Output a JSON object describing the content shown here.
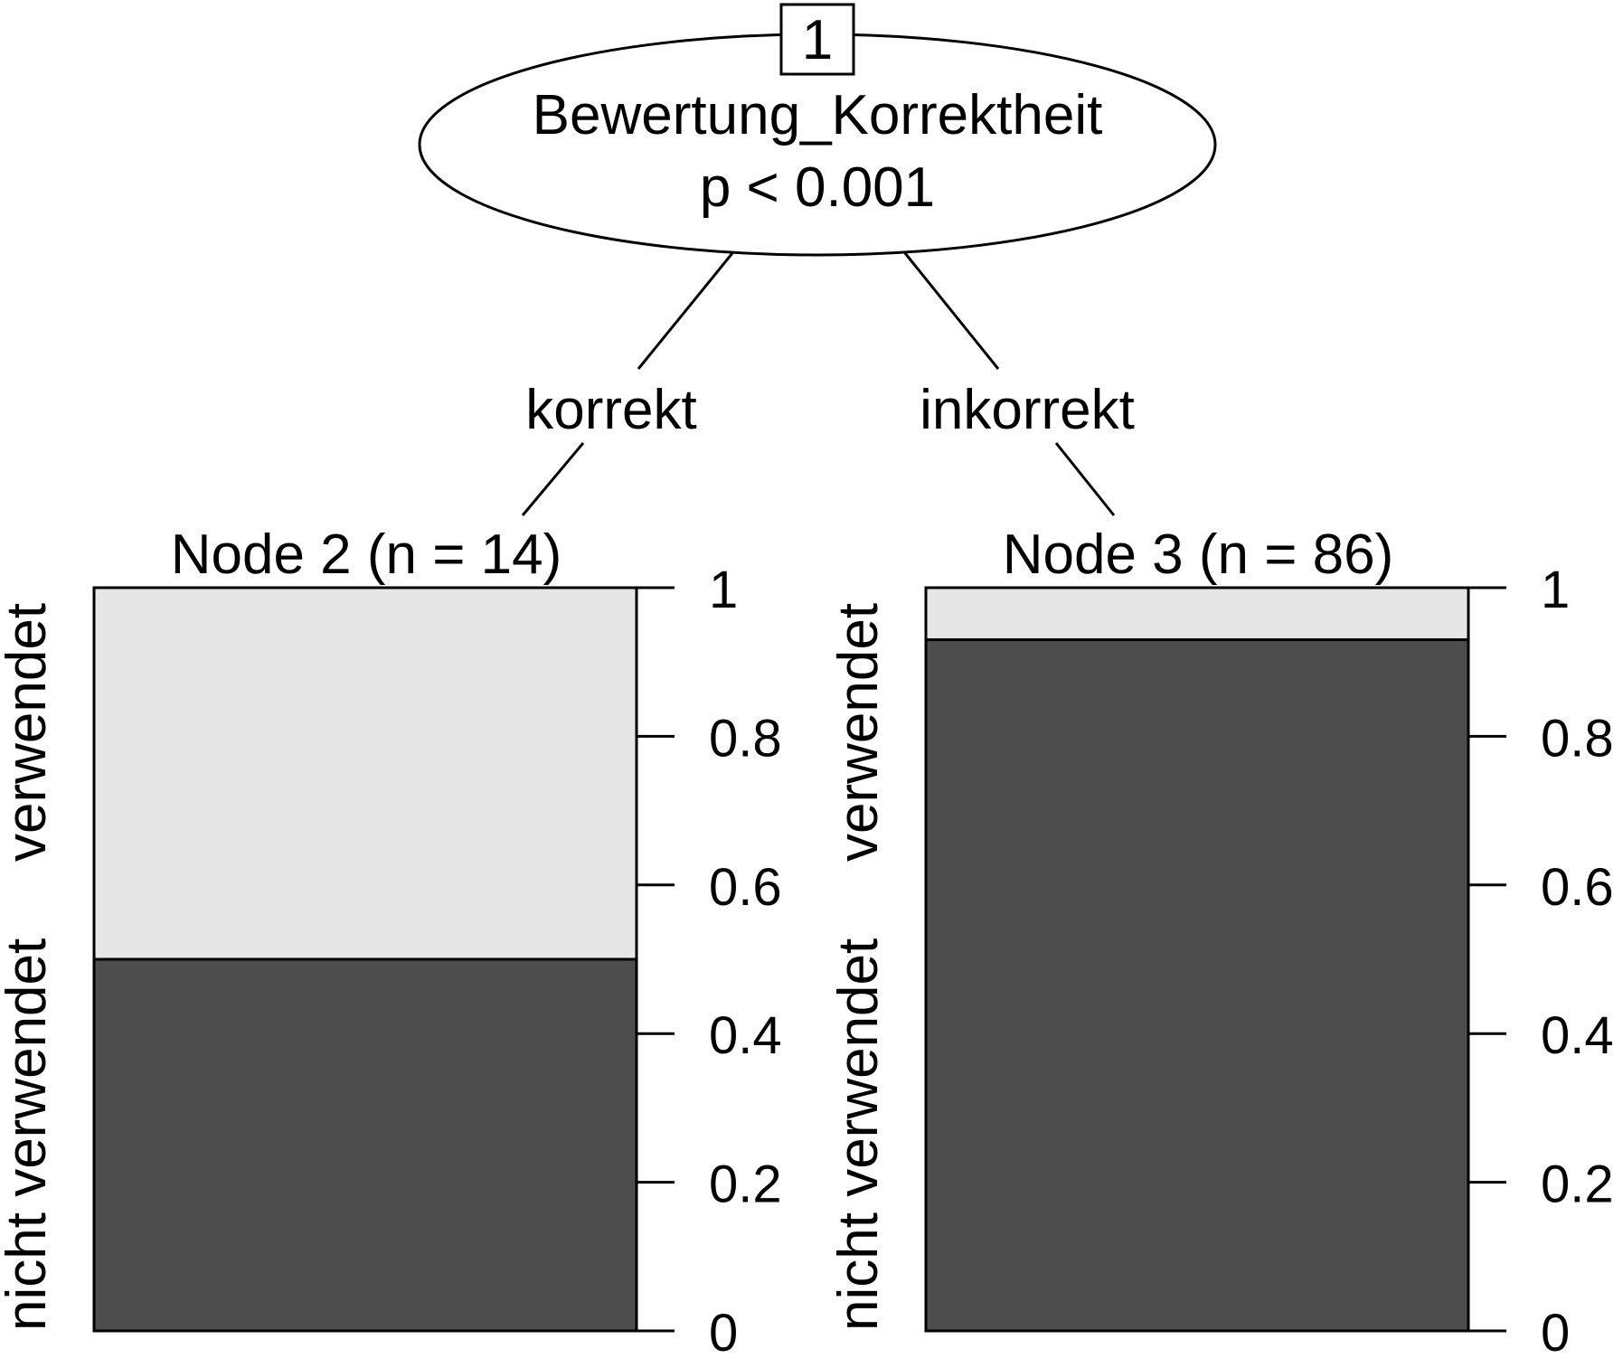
{
  "root_node": {
    "id": "1",
    "variable": "Bewertung_Korrektheit",
    "p_value": "p < 0.001"
  },
  "edges": [
    {
      "label": "korrekt"
    },
    {
      "label": "inkorrekt"
    }
  ],
  "terminal_nodes": [
    {
      "title": "Node 2 (n = 14)",
      "lower_label": "nicht verwendet",
      "upper_label": "verwendet"
    },
    {
      "title": "Node 3 (n = 86)",
      "lower_label": "nicht verwendet",
      "upper_label": "verwendet"
    }
  ],
  "colors": {
    "nicht_verwendet": "#4d4d4d",
    "verwendet": "#e6e6e6"
  },
  "chart_data": [
    {
      "type": "bar",
      "title": "Node 2 (n = 14)",
      "categories": [
        "nicht verwendet",
        "verwendet"
      ],
      "values": [
        0.5,
        0.5
      ],
      "stacked": true,
      "ylim": [
        0,
        1
      ],
      "ticks": [
        "0",
        "0.2",
        "0.4",
        "0.6",
        "0.8",
        "1"
      ]
    },
    {
      "type": "bar",
      "title": "Node 3 (n = 86)",
      "categories": [
        "nicht verwendet",
        "verwendet"
      ],
      "values": [
        0.93,
        0.07
      ],
      "stacked": true,
      "ylim": [
        0,
        1
      ],
      "ticks": [
        "0",
        "0.2",
        "0.4",
        "0.6",
        "0.8",
        "1"
      ]
    }
  ]
}
